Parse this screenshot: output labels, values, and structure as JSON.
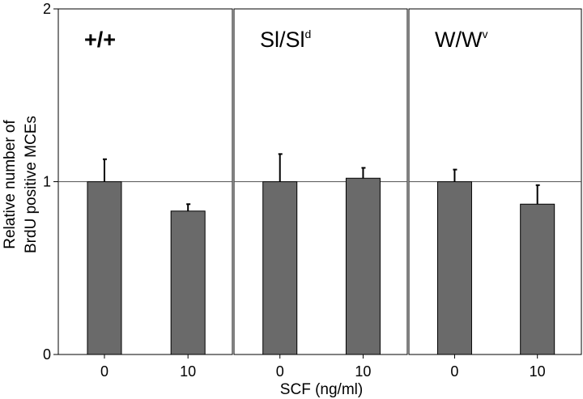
{
  "chart_data": {
    "type": "bar",
    "ylabel_line1": "Relative number of",
    "ylabel_line2": "BrdU positive MCEs",
    "xlabel": "SCF (ng/ml)",
    "ylim": [
      0,
      2
    ],
    "yticks": [
      "0",
      "1",
      "2"
    ],
    "reference_line": 1,
    "bar_color": "#6a6a6a",
    "panels": [
      {
        "label_base": "+/+",
        "label_sup": "",
        "categories": [
          "0",
          "10"
        ],
        "values": [
          1.0,
          0.83
        ],
        "errors": [
          0.13,
          0.04
        ]
      },
      {
        "label_base": "Sl/Sl",
        "label_sup": "d",
        "categories": [
          "0",
          "10"
        ],
        "values": [
          1.0,
          1.02
        ],
        "errors": [
          0.16,
          0.06
        ]
      },
      {
        "label_base": "W/W",
        "label_sup": "v",
        "categories": [
          "0",
          "10"
        ],
        "values": [
          1.0,
          0.87
        ],
        "errors": [
          0.07,
          0.11
        ]
      }
    ]
  }
}
